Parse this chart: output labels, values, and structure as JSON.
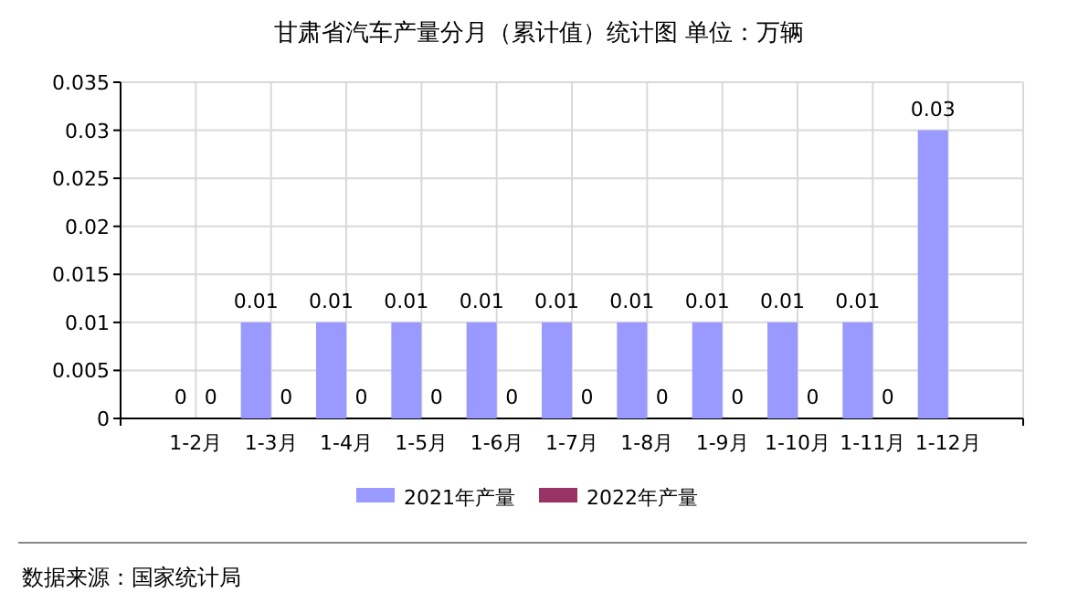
{
  "chart_data": {
    "type": "bar",
    "title": "甘肃省汽车产量分月（累计值）统计图 单位：万辆",
    "categories": [
      "1-2月",
      "1-3月",
      "1-4月",
      "1-5月",
      "1-6月",
      "1-7月",
      "1-8月",
      "1-9月",
      "1-10月",
      "1-11月",
      "1-12月"
    ],
    "series": [
      {
        "name": "2021年产量",
        "color": "#9999ff",
        "values": [
          0,
          0.01,
          0.01,
          0.01,
          0.01,
          0.01,
          0.01,
          0.01,
          0.01,
          0.01,
          0.03
        ]
      },
      {
        "name": "2022年产量",
        "color": "#993366",
        "values": [
          0,
          0,
          0,
          0,
          0,
          0,
          0,
          0,
          0,
          0,
          null
        ]
      }
    ],
    "ylim": [
      0,
      0.035
    ],
    "yticks": [
      0,
      0.005,
      0.01,
      0.015,
      0.02,
      0.025,
      0.03,
      0.035
    ],
    "grid": true,
    "legend": "bottom",
    "data_labels": true,
    "annotations": [
      "数据来源：国家统计局"
    ]
  }
}
